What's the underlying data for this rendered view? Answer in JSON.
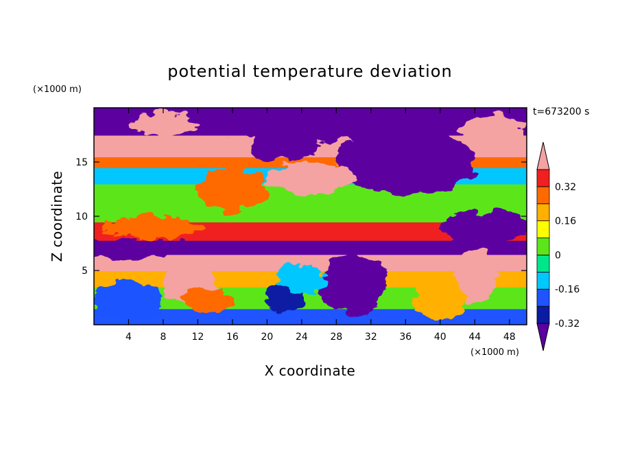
{
  "chart_data": {
    "type": "heatmap",
    "title": "potential temperature deviation",
    "xlabel": "X coordinate",
    "ylabel": "Z coordinate",
    "x_unit": "(×1000 m)",
    "y_unit": "(×1000 m)",
    "time_label": "t=673200 s",
    "xlim": [
      0,
      50
    ],
    "ylim": [
      0,
      20
    ],
    "x_ticks": [
      4,
      8,
      12,
      16,
      20,
      24,
      28,
      32,
      36,
      40,
      44,
      48
    ],
    "y_ticks": [
      5,
      10,
      15
    ],
    "colorbar": {
      "levels": [
        -0.4,
        -0.32,
        -0.24,
        -0.16,
        -0.08,
        0,
        0.08,
        0.16,
        0.24,
        0.32,
        0.4
      ],
      "labels": [
        "0.32",
        "0.16",
        "0",
        "-0.16",
        "-0.32"
      ],
      "label_values": [
        0.32,
        0.16,
        0,
        -0.16,
        -0.32
      ],
      "colors": [
        "#5c00a0",
        "#0b1ba3",
        "#1f54ff",
        "#00c8ff",
        "#00e68c",
        "#5ce61a",
        "#ffff00",
        "#ffb000",
        "#ff6a00",
        "#f02020",
        "#f5a2a2"
      ]
    },
    "bands": [
      {
        "z": [
          0,
          1.5
        ],
        "value": -0.24
      },
      {
        "z": [
          1.5,
          3.5
        ],
        "value": 0.05
      },
      {
        "z": [
          3.5,
          5
        ],
        "value": 0.2
      },
      {
        "z": [
          5,
          6.5
        ],
        "value": 0.42
      },
      {
        "z": [
          6.5,
          7.8
        ],
        "value": -0.42
      },
      {
        "z": [
          7.8,
          9.5
        ],
        "value": 0.33
      },
      {
        "z": [
          9.5,
          11.5
        ],
        "value": 0.05
      },
      {
        "z": [
          11.5,
          13
        ],
        "value": 0.0
      },
      {
        "z": [
          13,
          14.5
        ],
        "value": -0.1
      },
      {
        "z": [
          14.5,
          15.5
        ],
        "value": 0.25
      },
      {
        "z": [
          15.5,
          17.5
        ],
        "value": 0.4
      },
      {
        "z": [
          17.5,
          20
        ],
        "value": -0.42
      }
    ],
    "blobs": [
      {
        "x": 11,
        "z": 3.5,
        "rx": 3,
        "rz": 1.8,
        "value": 0.42
      },
      {
        "x": 30,
        "z": 3.8,
        "rx": 4,
        "rz": 2.8,
        "value": -0.42
      },
      {
        "x": 22,
        "z": 2.5,
        "rx": 2,
        "rz": 1.5,
        "value": -0.3
      },
      {
        "x": 44,
        "z": 4.5,
        "rx": 2.5,
        "rz": 2.5,
        "value": 0.42
      },
      {
        "x": 13,
        "z": 2.2,
        "rx": 3,
        "rz": 1.2,
        "value": 0.3
      },
      {
        "x": 3,
        "z": 7.0,
        "rx": 8,
        "rz": 0.8,
        "value": -0.42
      },
      {
        "x": 36,
        "z": 15,
        "rx": 8,
        "rz": 3,
        "value": -0.42
      },
      {
        "x": 45,
        "z": 9,
        "rx": 5,
        "rz": 1.5,
        "value": -0.42
      },
      {
        "x": 28,
        "z": 18.5,
        "rx": 14,
        "rz": 1.5,
        "value": -0.42
      },
      {
        "x": 22,
        "z": 16.5,
        "rx": 4,
        "rz": 1.4,
        "value": -0.42
      },
      {
        "x": 8,
        "z": 18.5,
        "rx": 4,
        "rz": 1,
        "value": 0.42
      },
      {
        "x": 46,
        "z": 18,
        "rx": 4,
        "rz": 1.2,
        "value": 0.42
      },
      {
        "x": 25,
        "z": 13.5,
        "rx": 5,
        "rz": 1.5,
        "value": 0.4
      },
      {
        "x": 16,
        "z": 12.5,
        "rx": 4,
        "rz": 2,
        "value": 0.3
      },
      {
        "x": 7,
        "z": 9,
        "rx": 6,
        "rz": 1,
        "value": 0.3
      },
      {
        "x": 40,
        "z": 2.5,
        "rx": 3,
        "rz": 2,
        "value": 0.2
      },
      {
        "x": 4,
        "z": 2.2,
        "rx": 4,
        "rz": 1.8,
        "value": -0.18
      },
      {
        "x": 24,
        "z": 4.2,
        "rx": 3,
        "rz": 1.4,
        "value": -0.12
      }
    ]
  }
}
